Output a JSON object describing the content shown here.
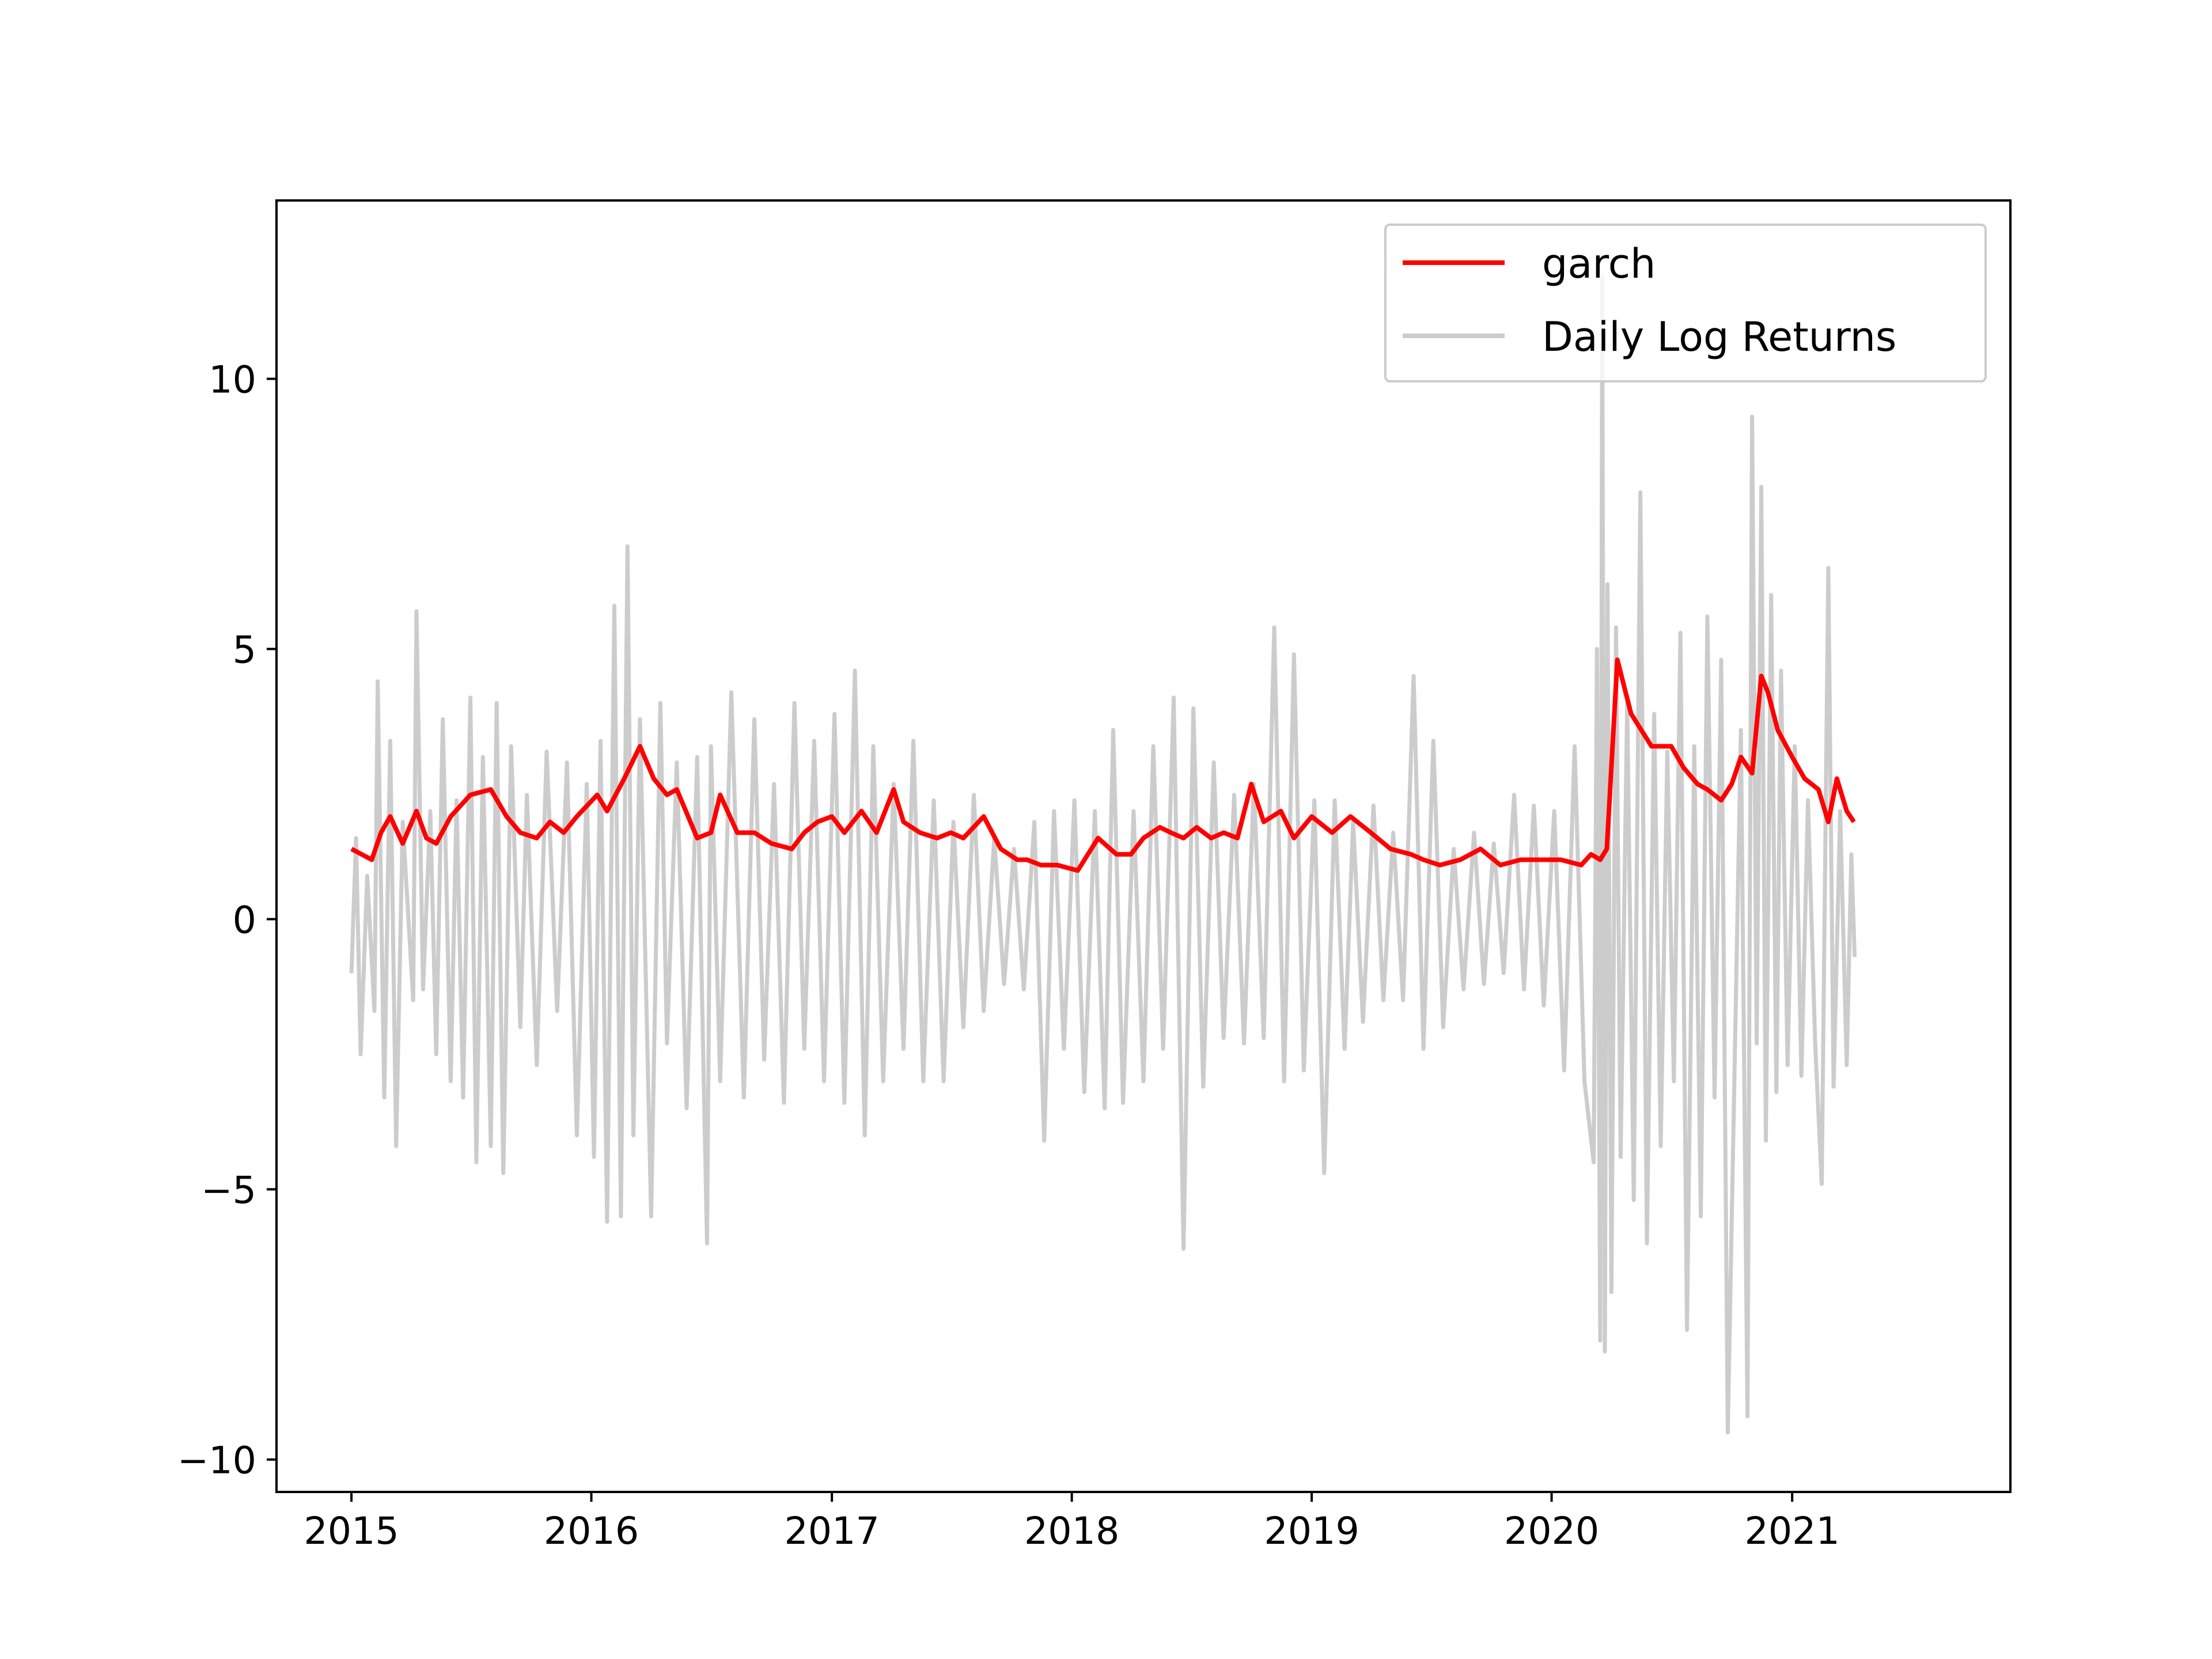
{
  "chart_data": {
    "type": "line",
    "title": "",
    "xlabel": "",
    "ylabel": "",
    "x_ticks": [
      "2015",
      "2016",
      "2017",
      "2018",
      "2019",
      "2020",
      "2021"
    ],
    "y_ticks": [
      "−10",
      "−5",
      "0",
      "5",
      "10"
    ],
    "xlim": [
      "2014-09-09",
      "2021-11-29"
    ],
    "ylim": [
      -10.6,
      13.3
    ],
    "grid": false,
    "legend": "upper right",
    "series": [
      {
        "name": "garch",
        "color": "#ff0000",
        "x": [
          "2015-01-01",
          "2015-02-01",
          "2015-02-15",
          "2015-03-01",
          "2015-03-20",
          "2015-04-10",
          "2015-04-25",
          "2015-05-10",
          "2015-06-01",
          "2015-07-01",
          "2015-08-01",
          "2015-08-25",
          "2015-09-15",
          "2015-10-10",
          "2015-10-30",
          "2015-11-20",
          "2015-12-10",
          "2016-01-10",
          "2016-01-25",
          "2016-02-20",
          "2016-03-15",
          "2016-04-05",
          "2016-04-25",
          "2016-05-10",
          "2016-06-10",
          "2016-07-01",
          "2016-07-15",
          "2016-08-10",
          "2016-09-05",
          "2016-10-01",
          "2016-11-01",
          "2016-11-20",
          "2016-12-10",
          "2017-01-01",
          "2017-01-20",
          "2017-02-15",
          "2017-03-10",
          "2017-04-05",
          "2017-04-20",
          "2017-05-15",
          "2017-06-10",
          "2017-07-01",
          "2017-07-20",
          "2017-08-20",
          "2017-09-15",
          "2017-10-10",
          "2017-10-25",
          "2017-11-15",
          "2017-12-10",
          "2018-01-10",
          "2018-02-10",
          "2018-03-10",
          "2018-04-01",
          "2018-04-20",
          "2018-05-15",
          "2018-06-01",
          "2018-06-20",
          "2018-07-10",
          "2018-08-01",
          "2018-08-20",
          "2018-09-10",
          "2018-10-01",
          "2018-10-20",
          "2018-11-15",
          "2018-12-05",
          "2019-01-01",
          "2019-02-01",
          "2019-03-01",
          "2019-04-01",
          "2019-05-01",
          "2019-06-01",
          "2019-06-20",
          "2019-07-15",
          "2019-08-15",
          "2019-09-15",
          "2019-10-15",
          "2019-11-15",
          "2019-12-15",
          "2020-01-15",
          "2020-02-15",
          "2020-03-01",
          "2020-03-15",
          "2020-03-25",
          "2020-04-10",
          "2020-05-01",
          "2020-06-01",
          "2020-07-01",
          "2020-07-20",
          "2020-08-10",
          "2020-08-25",
          "2020-09-15",
          "2020-10-01",
          "2020-10-15",
          "2020-11-01",
          "2020-11-15",
          "2020-11-25",
          "2020-12-10",
          "2021-01-01",
          "2021-01-20",
          "2021-02-10",
          "2021-02-25",
          "2021-03-10",
          "2021-03-25",
          "2021-04-05"
        ],
        "y": [
          1.3,
          1.1,
          1.6,
          1.9,
          1.4,
          2.0,
          1.5,
          1.4,
          1.9,
          2.3,
          2.4,
          1.9,
          1.6,
          1.5,
          1.8,
          1.6,
          1.9,
          2.3,
          2.0,
          2.6,
          3.2,
          2.6,
          2.3,
          2.4,
          1.5,
          1.6,
          2.3,
          1.6,
          1.6,
          1.4,
          1.3,
          1.6,
          1.8,
          1.9,
          1.6,
          2.0,
          1.6,
          2.4,
          1.8,
          1.6,
          1.5,
          1.6,
          1.5,
          1.9,
          1.3,
          1.1,
          1.1,
          1.0,
          1.0,
          0.9,
          1.5,
          1.2,
          1.2,
          1.5,
          1.7,
          1.6,
          1.5,
          1.7,
          1.5,
          1.6,
          1.5,
          2.5,
          1.8,
          2.0,
          1.5,
          1.9,
          1.6,
          1.9,
          1.6,
          1.3,
          1.2,
          1.1,
          1.0,
          1.1,
          1.3,
          1.0,
          1.1,
          1.1,
          1.1,
          1.0,
          1.2,
          1.1,
          1.3,
          4.8,
          3.8,
          3.2,
          3.2,
          2.8,
          2.5,
          2.4,
          2.2,
          2.5,
          3.0,
          2.7,
          4.5,
          4.2,
          3.5,
          3.0,
          2.6,
          2.4,
          1.8,
          2.6,
          2.0,
          1.8
        ]
      },
      {
        "name": "Daily Log Returns",
        "color": "#cccccc",
        "x": [
          "2015-01-01",
          "2015-01-08",
          "2015-01-15",
          "2015-01-25",
          "2015-02-05",
          "2015-02-10",
          "2015-02-20",
          "2015-03-01",
          "2015-03-10",
          "2015-03-20",
          "2015-04-05",
          "2015-04-10",
          "2015-04-20",
          "2015-05-01",
          "2015-05-10",
          "2015-05-20",
          "2015-06-01",
          "2015-06-10",
          "2015-06-20",
          "2015-07-01",
          "2015-07-10",
          "2015-07-20",
          "2015-08-01",
          "2015-08-10",
          "2015-08-20",
          "2015-09-01",
          "2015-09-15",
          "2015-09-25",
          "2015-10-10",
          "2015-10-25",
          "2015-11-10",
          "2015-11-25",
          "2015-12-10",
          "2015-12-25",
          "2016-01-05",
          "2016-01-15",
          "2016-01-25",
          "2016-02-05",
          "2016-02-15",
          "2016-02-25",
          "2016-03-05",
          "2016-03-15",
          "2016-04-01",
          "2016-04-15",
          "2016-04-25",
          "2016-05-10",
          "2016-05-25",
          "2016-06-10",
          "2016-06-25",
          "2016-07-01",
          "2016-07-15",
          "2016-08-01",
          "2016-08-20",
          "2016-09-05",
          "2016-09-20",
          "2016-10-05",
          "2016-10-20",
          "2016-11-05",
          "2016-11-20",
          "2016-12-05",
          "2016-12-20",
          "2017-01-05",
          "2017-01-20",
          "2017-02-05",
          "2017-02-20",
          "2017-03-05",
          "2017-03-20",
          "2017-04-05",
          "2017-04-20",
          "2017-05-05",
          "2017-05-20",
          "2017-06-05",
          "2017-06-20",
          "2017-07-05",
          "2017-07-20",
          "2017-08-05",
          "2017-08-20",
          "2017-09-05",
          "2017-09-20",
          "2017-10-05",
          "2017-10-20",
          "2017-11-05",
          "2017-11-20",
          "2017-12-05",
          "2017-12-20",
          "2018-01-05",
          "2018-01-20",
          "2018-02-05",
          "2018-02-20",
          "2018-03-05",
          "2018-03-20",
          "2018-04-05",
          "2018-04-20",
          "2018-05-05",
          "2018-05-20",
          "2018-06-05",
          "2018-06-20",
          "2018-07-05",
          "2018-07-20",
          "2018-08-05",
          "2018-08-20",
          "2018-09-05",
          "2018-09-20",
          "2018-10-05",
          "2018-10-20",
          "2018-11-05",
          "2018-11-20",
          "2018-12-05",
          "2018-12-20",
          "2019-01-05",
          "2019-01-20",
          "2019-02-05",
          "2019-02-20",
          "2019-03-05",
          "2019-03-20",
          "2019-04-05",
          "2019-04-20",
          "2019-05-05",
          "2019-05-20",
          "2019-06-05",
          "2019-06-20",
          "2019-07-05",
          "2019-07-20",
          "2019-08-05",
          "2019-08-20",
          "2019-09-05",
          "2019-09-20",
          "2019-10-05",
          "2019-10-20",
          "2019-11-05",
          "2019-11-20",
          "2019-12-05",
          "2019-12-20",
          "2020-01-05",
          "2020-01-20",
          "2020-02-05",
          "2020-02-20",
          "2020-03-05",
          "2020-03-10",
          "2020-03-15",
          "2020-03-18",
          "2020-03-22",
          "2020-03-26",
          "2020-04-01",
          "2020-04-08",
          "2020-04-15",
          "2020-04-25",
          "2020-05-05",
          "2020-05-15",
          "2020-05-25",
          "2020-06-05",
          "2020-06-15",
          "2020-06-25",
          "2020-07-05",
          "2020-07-15",
          "2020-07-25",
          "2020-08-05",
          "2020-08-15",
          "2020-08-25",
          "2020-09-05",
          "2020-09-15",
          "2020-09-25",
          "2020-10-05",
          "2020-10-15",
          "2020-10-25",
          "2020-11-01",
          "2020-11-08",
          "2020-11-15",
          "2020-11-22",
          "2020-11-30",
          "2020-12-08",
          "2020-12-15",
          "2020-12-25",
          "2021-01-05",
          "2021-01-15",
          "2021-01-25",
          "2021-02-05",
          "2021-02-15",
          "2021-02-25",
          "2021-03-05",
          "2021-03-15",
          "2021-03-25",
          "2021-04-01",
          "2021-04-06"
        ],
        "y": [
          -1.0,
          1.5,
          -2.5,
          0.8,
          -1.7,
          4.4,
          -3.3,
          3.3,
          -4.2,
          1.8,
          -1.5,
          5.7,
          -1.3,
          2.0,
          -2.5,
          3.7,
          -3.0,
          2.2,
          -3.3,
          4.1,
          -4.5,
          3.0,
          -4.2,
          4.0,
          -4.7,
          3.2,
          -2.0,
          2.3,
          -2.7,
          3.1,
          -1.7,
          2.9,
          -4.0,
          2.5,
          -4.4,
          3.3,
          -5.6,
          5.8,
          -5.5,
          6.9,
          -4.0,
          3.7,
          -5.5,
          4.0,
          -2.3,
          2.9,
          -3.5,
          3.0,
          -6.0,
          3.2,
          -3.0,
          4.2,
          -3.3,
          3.7,
          -2.6,
          2.5,
          -3.4,
          4.0,
          -2.4,
          3.3,
          -3.0,
          3.8,
          -3.4,
          4.6,
          -4.0,
          3.2,
          -3.0,
          2.5,
          -2.4,
          3.3,
          -3.0,
          2.2,
          -3.0,
          1.8,
          -2.0,
          2.3,
          -1.7,
          1.5,
          -1.2,
          1.3,
          -1.3,
          1.8,
          -4.1,
          2.0,
          -2.4,
          2.2,
          -3.2,
          2.0,
          -3.5,
          3.5,
          -3.4,
          2.0,
          -3.0,
          3.2,
          -2.4,
          4.1,
          -6.1,
          3.9,
          -3.1,
          2.9,
          -2.2,
          2.3,
          -2.3,
          2.5,
          -2.2,
          5.4,
          -3.0,
          4.9,
          -2.8,
          2.2,
          -4.7,
          2.2,
          -2.4,
          1.8,
          -1.9,
          2.1,
          -1.5,
          1.6,
          -1.5,
          4.5,
          -2.4,
          3.3,
          -2.0,
          1.3,
          -1.3,
          1.6,
          -1.2,
          1.4,
          -1.0,
          2.3,
          -1.3,
          2.1,
          -1.6,
          2.0,
          -2.8,
          3.2,
          -3.0,
          -4.5,
          5.0,
          -7.8,
          11.9,
          -8.0,
          6.2,
          -6.9,
          5.4,
          -4.4,
          4.0,
          -5.2,
          7.9,
          -6.0,
          3.8,
          -4.2,
          3.1,
          -3.0,
          5.3,
          -7.6,
          3.2,
          -5.5,
          5.6,
          -3.3,
          4.8,
          -9.5,
          -3.0,
          3.5,
          -9.2,
          9.3,
          -2.3,
          8.0,
          -4.1,
          6.0,
          -3.2,
          4.6,
          -2.7,
          3.2,
          -2.9,
          2.2,
          -2.3,
          -4.9,
          6.5,
          -3.1,
          2.0,
          -2.7,
          1.2,
          -0.7
        ]
      }
    ]
  }
}
